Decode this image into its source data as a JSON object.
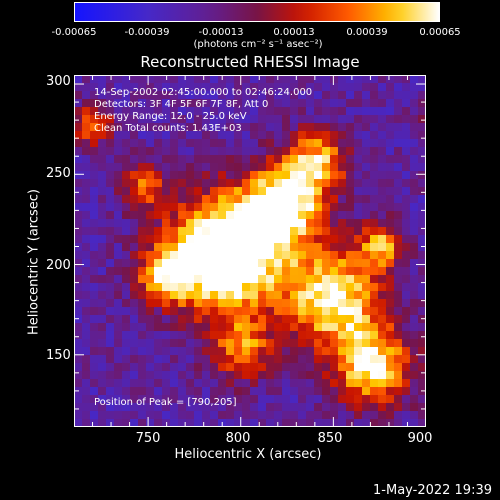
{
  "colorbar": {
    "ticks": [
      "-0.00065",
      "-0.00039",
      "-0.00013",
      "0.00013",
      "0.00039",
      "0.00065"
    ],
    "unit_label": "(photons cm⁻² s⁻¹ asec⁻²)",
    "range": [
      -0.00065,
      0.00065
    ]
  },
  "chart_data": {
    "type": "heatmap",
    "title": "Reconstructed RHESSI Image",
    "xlabel": "Heliocentric X (arcsec)",
    "ylabel": "Heliocentric Y (arcsec)",
    "xlim": [
      710,
      900
    ],
    "ylim": [
      110,
      305
    ],
    "xticks": [
      "750",
      "800",
      "850",
      "900"
    ],
    "yticks": [
      "300",
      "250",
      "200",
      "150"
    ],
    "peak": [
      790,
      205
    ],
    "annotations": [
      "14-Sep-2002 02:45:00.000 to 02:46:24.000",
      "Detectors: 3F 4F 5F 6F 7F 8F, Att 0",
      "Energy Range: 12.0 - 25.0 keV",
      "Clean     Total counts: 1.43E+03"
    ],
    "peak_label": "Position of Peak = [790,205]"
  },
  "datestamp": "1-May-2022 19:39"
}
